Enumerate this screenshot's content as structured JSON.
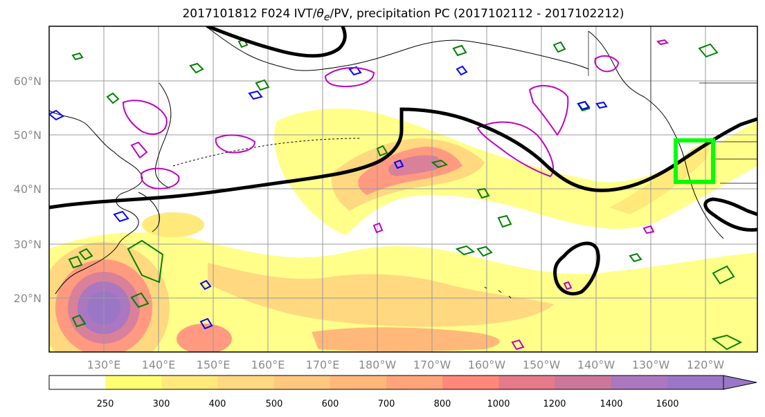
{
  "title": {
    "prefix": "2017101812 F024 IVT/",
    "theta": "θ",
    "theta_sub": "e",
    "suffix": "/PV, precipitation PC (2017102112 - 2017102212)"
  },
  "axes": {
    "lat_labels": [
      "60°N",
      "50°N",
      "40°N",
      "30°N",
      "20°N"
    ],
    "lon_labels": [
      "130°E",
      "140°E",
      "150°E",
      "160°E",
      "170°E",
      "180°W",
      "170°W",
      "160°W",
      "150°W",
      "140°W",
      "130°W",
      "120°W"
    ]
  },
  "colorbar": {
    "levels": [
      "250",
      "300",
      "400",
      "500",
      "600",
      "700",
      "800",
      "1000",
      "1200",
      "1400",
      "1600"
    ],
    "colors": [
      "#ffffff",
      "#ffff73",
      "#ffe97a",
      "#ffd880",
      "#ffc87e",
      "#ffb87a",
      "#ffa47a",
      "#ff8878",
      "#e57a8a",
      "#cc7799",
      "#aa77c0",
      "#9a77c6"
    ]
  },
  "domain_box_color": "#00ff00",
  "contour_colors": {
    "theta_e": "#000000",
    "pv_green": "#008000",
    "pv_blue": "#0000ff",
    "pv_magenta": "#c000c0"
  }
}
